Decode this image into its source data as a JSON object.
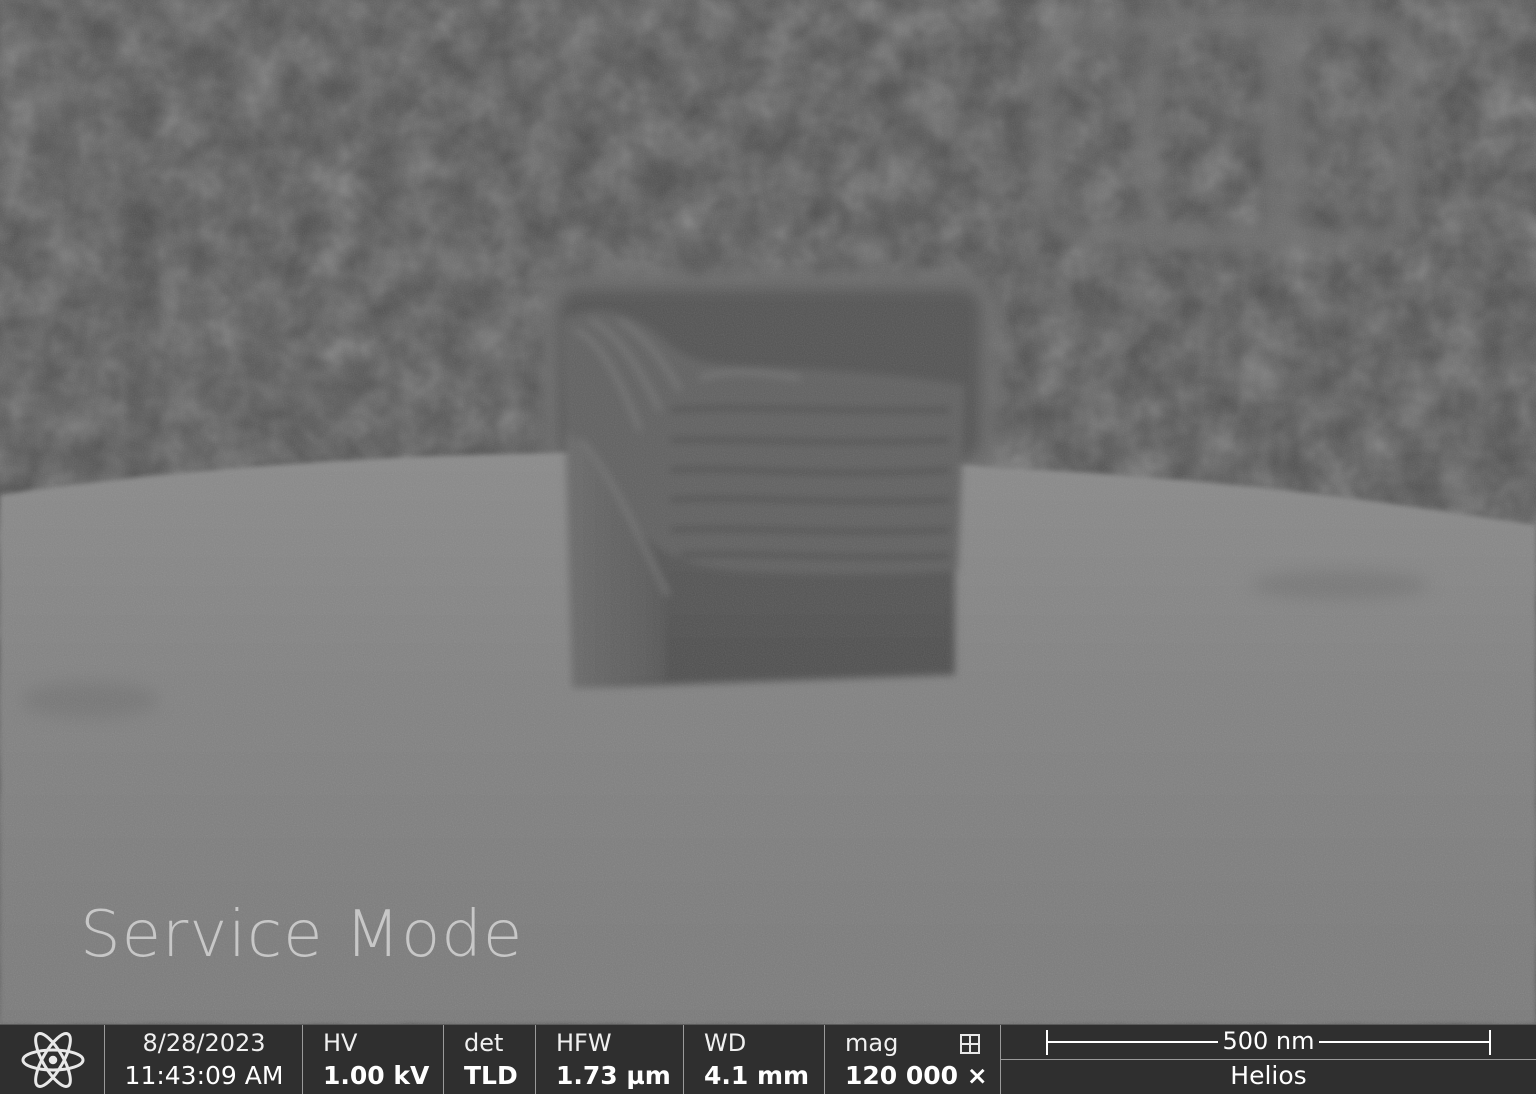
{
  "image": {
    "overlay_text": "Service Mode"
  },
  "databar": {
    "logo_icon": "atom-icon",
    "date": "8/28/2023",
    "time": "11:43:09 AM",
    "hv_label": "HV",
    "hv_value": "1.00 kV",
    "det_label": "det",
    "det_value": "TLD",
    "hfw_label": "HFW",
    "hfw_value": "1.73 µm",
    "wd_label": "WD",
    "wd_value": "4.1 mm",
    "mag_label": "mag",
    "mag_icon": "grid-icon",
    "mag_value": "120 000 ×",
    "scale_bar_label": "500 nm",
    "instrument": "Helios"
  }
}
